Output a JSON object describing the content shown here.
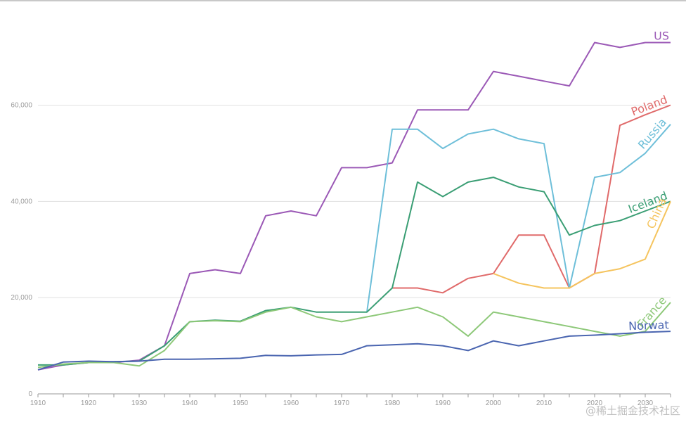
{
  "chart_data": {
    "type": "line",
    "title": "",
    "xlabel": "",
    "ylabel": "",
    "x": [
      1910,
      1915,
      1920,
      1925,
      1930,
      1935,
      1940,
      1945,
      1950,
      1955,
      1960,
      1965,
      1970,
      1975,
      1980,
      1985,
      1990,
      1995,
      2000,
      2005,
      2010,
      2015,
      2020,
      2025,
      2030,
      2035
    ],
    "x_ticks": [
      1910,
      1920,
      1930,
      1940,
      1950,
      1960,
      1970,
      1980,
      1990,
      2000,
      2010,
      2020,
      2030
    ],
    "x_tick_labels": [
      "1910",
      "1920",
      "1930",
      "1940",
      "1950",
      "1960",
      "1970",
      "1980",
      "1990",
      "2000",
      "2010",
      "2020",
      "2030"
    ],
    "xlim": [
      1910,
      2035
    ],
    "y_ticks": [
      0,
      20000,
      40000,
      60000
    ],
    "y_tick_labels": [
      "0",
      "20,000",
      "40,000",
      "60,000"
    ],
    "ylim": [
      0,
      76000
    ],
    "grid": "horizontal",
    "legend": "labels at line ends",
    "series": [
      {
        "name": "US",
        "color": "#9b59b6",
        "values": [
          5000,
          6000,
          6500,
          6500,
          7000,
          10000,
          25000,
          25800,
          25000,
          37000,
          38000,
          37000,
          47000,
          47000,
          48000,
          59000,
          59000,
          59000,
          67000,
          66000,
          65000,
          64000,
          73000,
          72000,
          73000,
          73000
        ]
      },
      {
        "name": "Poland",
        "color": "#e06a6a",
        "values": [
          null,
          null,
          null,
          null,
          null,
          null,
          null,
          null,
          null,
          null,
          null,
          null,
          null,
          null,
          22000,
          22000,
          21000,
          24000,
          25000,
          33000,
          33000,
          22000,
          25000,
          55800,
          58000,
          60000
        ]
      },
      {
        "name": "Russia",
        "color": "#6ebfd9",
        "values": [
          null,
          null,
          null,
          null,
          null,
          null,
          null,
          null,
          null,
          null,
          null,
          null,
          null,
          17000,
          55000,
          55000,
          51000,
          54000,
          55000,
          53000,
          52000,
          22000,
          45000,
          46000,
          50000,
          56000
        ]
      },
      {
        "name": "Iceland",
        "color": "#3a9e74",
        "values": [
          6000,
          6000,
          6500,
          6700,
          6800,
          10000,
          15000,
          15300,
          15100,
          17300,
          18000,
          17000,
          17000,
          17000,
          22000,
          44000,
          41000,
          44000,
          45000,
          43000,
          42000,
          33000,
          35000,
          36000,
          38000,
          40000
        ]
      },
      {
        "name": "China",
        "color": "#f5c45e",
        "values": [
          null,
          null,
          null,
          null,
          null,
          null,
          null,
          null,
          null,
          null,
          null,
          null,
          null,
          null,
          null,
          null,
          null,
          null,
          25000,
          23000,
          22000,
          22000,
          25000,
          26000,
          28000,
          40000
        ]
      },
      {
        "name": "France",
        "color": "#8dc878",
        "values": [
          5500,
          6200,
          6500,
          6500,
          5800,
          9000,
          15000,
          15200,
          15000,
          17000,
          18000,
          16000,
          15000,
          16000,
          17000,
          18000,
          16000,
          12000,
          17000,
          16000,
          15000,
          14000,
          13000,
          12000,
          13000,
          19000
        ]
      },
      {
        "name": "Norwat",
        "color": "#4a65b0",
        "values": [
          5000,
          6600,
          6800,
          6700,
          6800,
          7200,
          7200,
          7300,
          7400,
          8000,
          7900,
          8100,
          8200,
          10000,
          10200,
          10400,
          10000,
          9000,
          11000,
          10000,
          11000,
          12000,
          12200,
          12500,
          12800,
          13000
        ]
      }
    ]
  },
  "watermark": "@稀土掘金技术社区"
}
